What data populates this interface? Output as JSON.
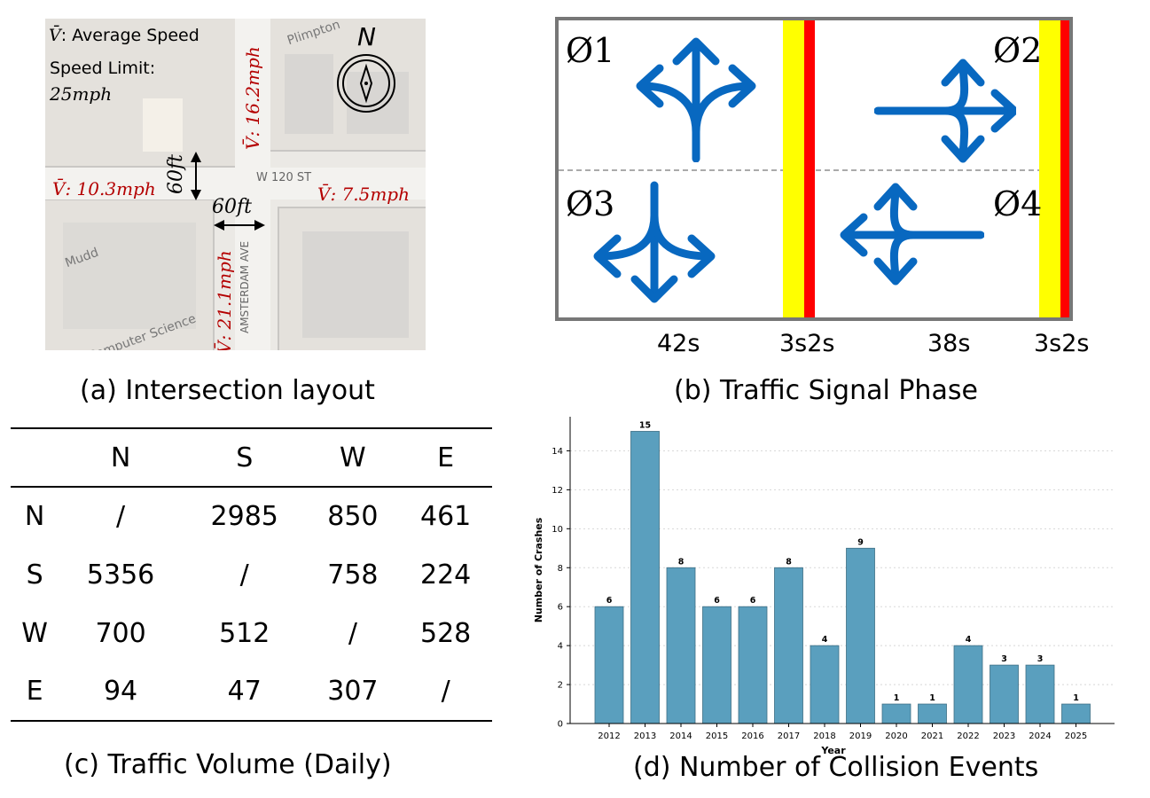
{
  "panel_a": {
    "caption": "(a) Intersection layout",
    "legend_symbol": "V̄",
    "legend_text": ": Average Speed",
    "speed_limit_label": "Speed Limit:",
    "speed_limit_value": "25mph",
    "north_label": "N",
    "speeds": {
      "north": "V̄: 16.2mph",
      "west": "V̄: 10.3mph",
      "east": "V̄: 7.5mph",
      "south": "V̄: 21.1mph"
    },
    "width_ew": "60ft",
    "width_ns": "60ft",
    "street_labels": {
      "w120": "W 120 ST",
      "amsterdam": "AMSTERDAM AVE",
      "mudd": "Mudd",
      "cs": "Computer Science",
      "plimpton": "Plimpton"
    }
  },
  "panel_b": {
    "caption": "(b) Traffic Signal Phase",
    "phases": [
      "Ø1",
      "Ø2",
      "Ø3",
      "Ø4"
    ],
    "durations": {
      "green1": "42s",
      "yellow_red1": "3s2s",
      "green2": "38s",
      "yellow_red2": "3s2s"
    },
    "colors": {
      "arrow": "#0868c0",
      "yellow": "#ffff00",
      "red": "#ff0000",
      "frame": "#777777"
    }
  },
  "panel_c": {
    "caption": "(c) Traffic Volume (Daily)",
    "columns": [
      "",
      "N",
      "S",
      "W",
      "E"
    ],
    "rows": [
      [
        "N",
        "/",
        "2985",
        "850",
        "461"
      ],
      [
        "S",
        "5356",
        "/",
        "758",
        "224"
      ],
      [
        "W",
        "700",
        "512",
        "/",
        "528"
      ],
      [
        "E",
        "94",
        "47",
        "307",
        "/"
      ]
    ]
  },
  "panel_d": {
    "caption": "(d) Number of Collision Events"
  },
  "chart_data": {
    "type": "bar",
    "categories": [
      "2012",
      "2013",
      "2014",
      "2015",
      "2016",
      "2017",
      "2018",
      "2019",
      "2020",
      "2021",
      "2022",
      "2023",
      "2024",
      "2025"
    ],
    "values": [
      6,
      15,
      8,
      6,
      6,
      8,
      4,
      9,
      1,
      1,
      4,
      3,
      3,
      1
    ],
    "xlabel": "Year",
    "ylabel": "Number of Crashes",
    "ylim": [
      0,
      15.75
    ],
    "yticks": [
      0,
      2,
      4,
      6,
      8,
      10,
      12,
      14
    ],
    "grid": "horizontal dotted",
    "bar_color": "#5a9fbe"
  }
}
